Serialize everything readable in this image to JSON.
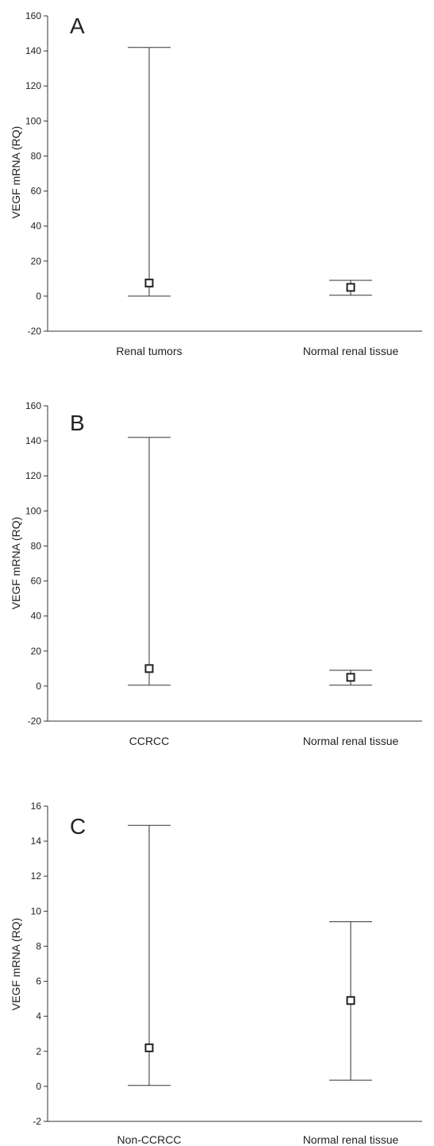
{
  "chart_data": [
    {
      "type": "scatter",
      "panel_label": "A",
      "ylabel": "VEGF mRNA (RQ)",
      "ylim": [
        -20,
        160
      ],
      "yticks": [
        "-20",
        "0",
        "20",
        "40",
        "60",
        "80",
        "100",
        "120",
        "140",
        "160"
      ],
      "categories": [
        "Renal tumors",
        "Normal renal tissue"
      ],
      "points": [
        {
          "category": "Renal tumors",
          "value": 7.5,
          "lower": 0,
          "upper": 142
        },
        {
          "category": "Normal renal tissue",
          "value": 5,
          "lower": 0.5,
          "upper": 9
        }
      ]
    },
    {
      "type": "scatter",
      "panel_label": "B",
      "ylabel": "VEGF mRNA (RQ)",
      "ylim": [
        -20,
        160
      ],
      "yticks": [
        "-20",
        "0",
        "20",
        "40",
        "60",
        "80",
        "100",
        "120",
        "140",
        "160"
      ],
      "categories": [
        "CCRCC",
        "Normal renal tissue"
      ],
      "points": [
        {
          "category": "CCRCC",
          "value": 10,
          "lower": 0.5,
          "upper": 142
        },
        {
          "category": "Normal renal tissue",
          "value": 5,
          "lower": 0.5,
          "upper": 9
        }
      ]
    },
    {
      "type": "scatter",
      "panel_label": "C",
      "ylabel": "VEGF mRNA (RQ)",
      "ylim": [
        -2,
        16
      ],
      "yticks": [
        "-2",
        "0",
        "2",
        "4",
        "6",
        "8",
        "10",
        "12",
        "14",
        "16"
      ],
      "categories": [
        "Non-CCRCC",
        "Normal renal tissue"
      ],
      "points": [
        {
          "category": "Non-CCRCC",
          "value": 2.2,
          "lower": 0.05,
          "upper": 14.9
        },
        {
          "category": "Normal renal tissue",
          "value": 4.9,
          "lower": 0.35,
          "upper": 9.4
        }
      ]
    }
  ]
}
